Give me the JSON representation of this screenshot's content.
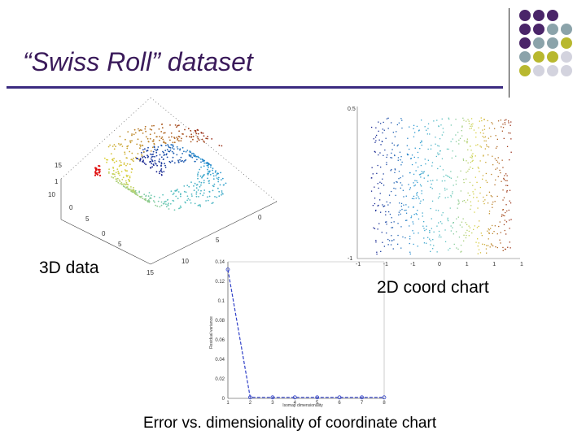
{
  "title": "“Swiss Roll” dataset",
  "captions": {
    "left": "3D data",
    "right": "2D coord chart",
    "bottom": "Error vs. dimensionality of coordinate chart"
  },
  "decor_colors": [
    "#4a2569",
    "#8ba3aa",
    "#b8b82f",
    "#d3d3de"
  ],
  "chart_data": [
    {
      "type": "scatter",
      "title": "",
      "description": "3D Swiss roll point cloud",
      "tick_labels": {
        "z": [
          "15",
          "1",
          "10"
        ],
        "x": [
          "0",
          "5",
          "0",
          "5"
        ],
        "y": [
          "0",
          "5",
          "10",
          "15"
        ],
        "depth": [
          "10",
          "0",
          "10",
          "5"
        ]
      },
      "grid": false
    },
    {
      "type": "scatter",
      "title": "",
      "description": "2D embedding coordinate chart",
      "yticks": [
        "0.5",
        "",
        "",
        "",
        "",
        "",
        "",
        "",
        "",
        "-1"
      ],
      "xticks": [
        "-1",
        "-1",
        "-1",
        "0",
        "1",
        "1",
        "1"
      ],
      "grid": false
    },
    {
      "type": "line",
      "title": "",
      "xlabel": "Isomap dimensionality",
      "ylabel": "Residual variance",
      "x": [
        1,
        2,
        3,
        4,
        5,
        6,
        7,
        8
      ],
      "y": [
        0.132,
        0.001,
        0.001,
        0.001,
        0.001,
        0.001,
        0.001,
        0.001
      ],
      "xticks": [
        "1",
        "2",
        "3",
        "4",
        "5",
        "6",
        "7",
        "8"
      ],
      "yticks": [
        "0",
        "0.02",
        "0.04",
        "0.06",
        "0.08",
        "0.1",
        "0.12",
        "0.14"
      ],
      "ylim": [
        0,
        0.14
      ],
      "xlim": [
        1,
        8
      ],
      "grid": false
    }
  ]
}
